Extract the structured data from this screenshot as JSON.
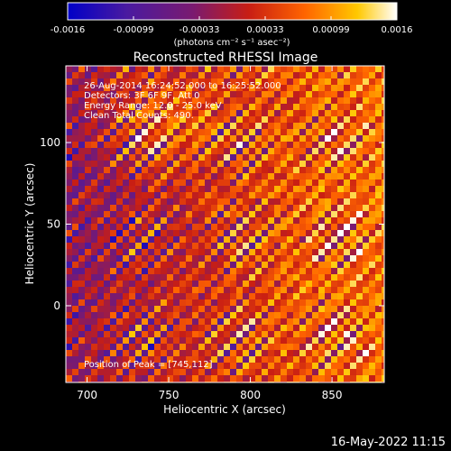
{
  "chart_data": {
    "type": "heatmap",
    "title": "Reconstructed RHESSI Image",
    "xlabel": "Heliocentric X (arcsec)",
    "ylabel": "Heliocentric Y (arcsec)",
    "xlim": [
      687,
      882
    ],
    "ylim": [
      -47,
      147
    ],
    "x_ticks": [
      700,
      750,
      800,
      850
    ],
    "y_ticks": [
      0,
      50,
      100
    ],
    "colorbar": {
      "range": [
        -0.0016,
        0.0016
      ],
      "ticks": [
        "-0.0016",
        "-0.00099",
        "-0.00033",
        "0.00033",
        "0.00099",
        "0.0016"
      ],
      "unit_label": "(photons cm⁻² s⁻¹ asec⁻²)",
      "colors": [
        "#0000c8",
        "#4a1aa0",
        "#7a1a70",
        "#c81e14",
        "#ff6400",
        "#ffc800",
        "#ffffff"
      ]
    },
    "annotations": [
      "26-Aug-2014 16:24:52.000 to 16:25:52.000",
      "Detectors: 3F 6F 9F, Att 0",
      "Energy Range: 12.0 - 25.0 keV",
      "Clean    Total Counts: 490.",
      "Position of Peak = [745,112]"
    ],
    "peak": {
      "x": 745,
      "y": 112
    },
    "grid": false
  },
  "footer": {
    "timestamp": "16-May-2022 11:15"
  }
}
